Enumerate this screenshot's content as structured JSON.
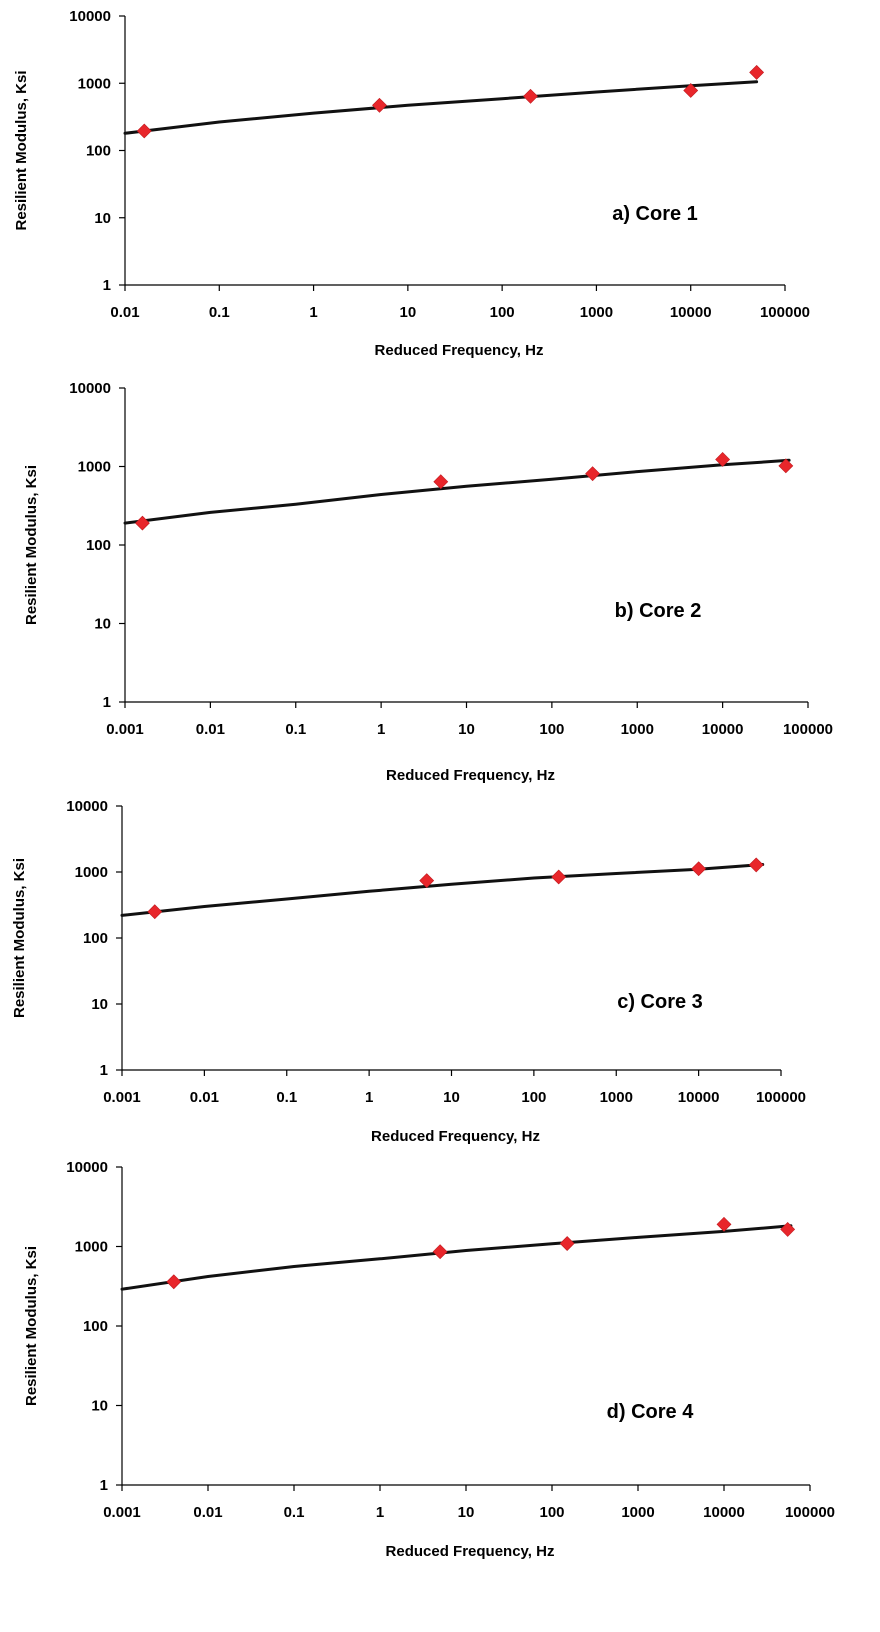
{
  "chart_data": [
    {
      "type": "scatter",
      "panel_label": "a) Core 1",
      "xlabel": "Reduced Frequency, Hz",
      "ylabel": "Resilient Modulus, Ksi",
      "x_scale": "log",
      "y_scale": "log",
      "xlim": [
        0.01,
        100000
      ],
      "ylim": [
        1,
        10000
      ],
      "x_ticks": [
        "0.01",
        "0.1",
        "1",
        "10",
        "100",
        "1000",
        "10000",
        "100000"
      ],
      "y_ticks": [
        "1",
        "10",
        "100",
        "1000",
        "10000"
      ],
      "grid": false,
      "series": [
        {
          "kind": "points",
          "marker": "diamond",
          "color": "#e8262b",
          "x": [
            0.016,
            5,
            200,
            10000,
            50000
          ],
          "y": [
            195,
            470,
            640,
            780,
            1450
          ]
        },
        {
          "kind": "line",
          "color": "#111111",
          "x": [
            0.01,
            0.1,
            1,
            10,
            100,
            1000,
            10000,
            50000
          ],
          "y": [
            180,
            265,
            360,
            470,
            590,
            740,
            920,
            1050
          ]
        }
      ]
    },
    {
      "type": "scatter",
      "panel_label": "b) Core 2",
      "xlabel": "Reduced Frequency, Hz",
      "ylabel": "Resilient Modulus, Ksi",
      "x_scale": "log",
      "y_scale": "log",
      "xlim": [
        0.001,
        100000
      ],
      "ylim": [
        1,
        10000
      ],
      "x_ticks": [
        "0.001",
        "0.01",
        "0.1",
        "1",
        "10",
        "100",
        "1000",
        "10000",
        "100000"
      ],
      "y_ticks": [
        "1",
        "10",
        "100",
        "1000",
        "10000"
      ],
      "grid": false,
      "series": [
        {
          "kind": "points",
          "marker": "diamond",
          "color": "#e8262b",
          "x": [
            0.0016,
            5,
            300,
            10000,
            55000
          ],
          "y": [
            190,
            640,
            810,
            1230,
            1020
          ]
        },
        {
          "kind": "line",
          "color": "#111111",
          "x": [
            0.001,
            0.01,
            0.1,
            1,
            10,
            100,
            1000,
            10000,
            60000
          ],
          "y": [
            190,
            260,
            330,
            440,
            560,
            690,
            860,
            1050,
            1200
          ]
        }
      ]
    },
    {
      "type": "scatter",
      "panel_label": "c) Core 3",
      "xlabel": "Reduced Frequency, Hz",
      "ylabel": "Resilient Modulus, Ksi",
      "x_scale": "log",
      "y_scale": "log",
      "xlim": [
        0.001,
        100000
      ],
      "ylim": [
        1,
        10000
      ],
      "x_ticks": [
        "0.001",
        "0.01",
        "0.1",
        "1",
        "10",
        "100",
        "1000",
        "10000",
        "100000"
      ],
      "y_ticks": [
        "1",
        "10",
        "100",
        "1000",
        "10000"
      ],
      "grid": false,
      "series": [
        {
          "kind": "points",
          "marker": "diamond",
          "color": "#e8262b",
          "x": [
            0.0025,
            5,
            200,
            10000,
            50000
          ],
          "y": [
            250,
            740,
            840,
            1120,
            1280
          ]
        },
        {
          "kind": "line",
          "color": "#111111",
          "x": [
            0.001,
            0.01,
            0.1,
            1,
            10,
            100,
            1000,
            10000,
            60000
          ],
          "y": [
            220,
            300,
            390,
            510,
            650,
            810,
            950,
            1100,
            1300
          ]
        }
      ]
    },
    {
      "type": "scatter",
      "panel_label": "d) Core 4",
      "xlabel": "Reduced Frequency, Hz",
      "ylabel": "Resilient Modulus, Ksi",
      "x_scale": "log",
      "y_scale": "log",
      "xlim": [
        0.001,
        100000
      ],
      "ylim": [
        1,
        10000
      ],
      "x_ticks": [
        "0.001",
        "0.01",
        "0.1",
        "1",
        "10",
        "100",
        "1000",
        "10000",
        "100000"
      ],
      "y_ticks": [
        "1",
        "10",
        "100",
        "1000",
        "10000"
      ],
      "grid": false,
      "series": [
        {
          "kind": "points",
          "marker": "diamond",
          "color": "#e8262b",
          "x": [
            0.004,
            5,
            150,
            10000,
            55000
          ],
          "y": [
            360,
            860,
            1090,
            1900,
            1640
          ]
        },
        {
          "kind": "line",
          "color": "#111111",
          "x": [
            0.001,
            0.01,
            0.1,
            1,
            10,
            100,
            1000,
            10000,
            60000
          ],
          "y": [
            290,
            420,
            560,
            700,
            890,
            1080,
            1300,
            1550,
            1820
          ]
        }
      ]
    }
  ]
}
